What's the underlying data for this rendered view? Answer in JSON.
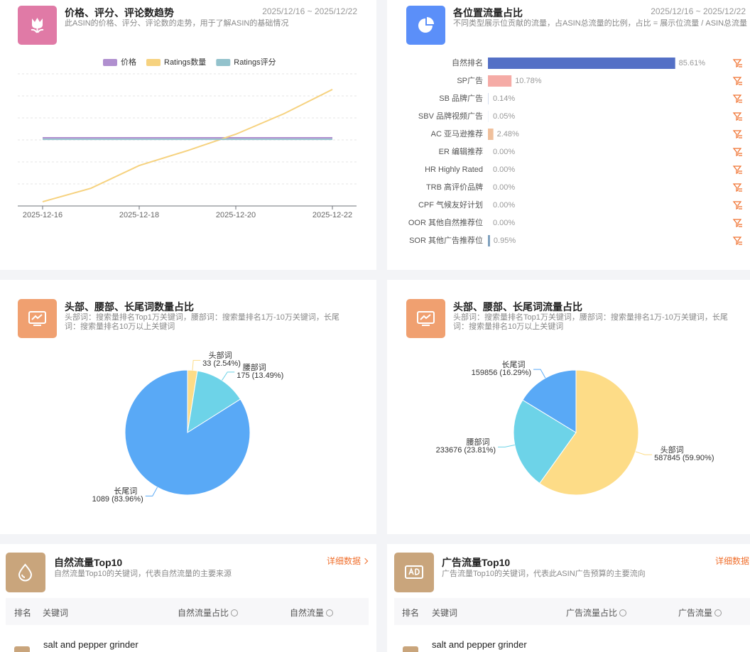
{
  "chart_data": [
    {
      "type": "line",
      "title": "价格、评分、评论数趋势",
      "subtitle": "此ASIN的价格、评分、评论数的走势，用于了解ASIN的基础情况",
      "date_range": "2025/12/16 ~ 2025/12/22",
      "categories": [
        "2025-12-16",
        null,
        "2025-12-18",
        null,
        "2025-12-20",
        null,
        "2025-12-22"
      ],
      "series": [
        {
          "name": "价格",
          "color": "#b08fcf",
          "values": [
            51.6,
            51.6,
            51.6,
            51.6,
            51.6,
            51.6,
            51.6
          ]
        },
        {
          "name": "Ratings数量",
          "color": "#f6d27f",
          "values": [
            3.2,
            13.4,
            30.6,
            41.9,
            54.3,
            69.9,
            88.2
          ]
        },
        {
          "name": "Ratings评分",
          "color": "#93c2cc",
          "values": [
            50.5,
            50.5,
            50.5,
            50.5,
            50.5,
            50.5,
            50.5
          ]
        }
      ],
      "ylim": [
        0,
        100
      ],
      "grid": true
    },
    {
      "type": "hbar",
      "title": "各位置流量占比",
      "subtitle": "不同类型展示位贡献的流量，占ASIN总流量的比例，占比 = 展示位流量 / ASIN总流量",
      "date_range": "2025/12/16 ~ 2025/12/22",
      "categories": [
        "自然排名",
        "SP广告",
        "SB 品牌广告",
        "SBV 品牌视频广告",
        "AC 亚马逊推荐",
        "ER 编辑推荐",
        "HR Highly Rated",
        "TRB 高评价品牌",
        "CPF 气候友好计划",
        "OOR 其他自然推荐位",
        "SOR 其他广告推荐位"
      ],
      "values": [
        85.61,
        10.78,
        0.14,
        0.05,
        2.48,
        0,
        0,
        0,
        0,
        0,
        0.95
      ],
      "value_labels": [
        "85.61%",
        "10.78%",
        "0.14%",
        "0.05%",
        "2.48%",
        "0.00%",
        "0.00%",
        "0.00%",
        "0.00%",
        "0.00%",
        "0.95%"
      ],
      "colors": [
        "#5470c6",
        "#f5aba6",
        "#9fb3d9",
        "#9fb3d9",
        "#f0c09c",
        "#9fb3d9",
        "#9fb3d9",
        "#9fb3d9",
        "#9fb3d9",
        "#9fb3d9",
        "#7d9fbd"
      ],
      "xlim": [
        0,
        100
      ]
    },
    {
      "type": "pie",
      "title": "头部、腰部、长尾词数量占比",
      "subtitle": "头部词：搜索量排名Top1万关键词，腰部词：搜索量排名1万-10万关键词，长尾词：搜索量排名10万以上关键词",
      "categories": [
        "头部词",
        "腰部词",
        "长尾词"
      ],
      "values": [
        33,
        175,
        1089
      ],
      "value_labels": [
        "33 (2.54%)",
        "175 (13.49%)",
        "1089 (83.96%)"
      ],
      "colors": [
        "#fddc87",
        "#6dd3e8",
        "#59a9f6"
      ]
    },
    {
      "type": "pie",
      "title": "头部、腰部、长尾词流量占比",
      "subtitle": "头部词：搜索量排名Top1万关键词，腰部词：搜索量排名1万-10万关键词，长尾词：搜索量排名10万以上关键词",
      "categories": [
        "头部词",
        "腰部词",
        "长尾词"
      ],
      "values": [
        587845,
        233676,
        159856
      ],
      "value_labels": [
        "587845 (59.90%)",
        "233676 (23.81%)",
        "159856 (16.29%)"
      ],
      "colors": [
        "#fddc87",
        "#6dd3e8",
        "#59a9f6"
      ]
    }
  ],
  "tables": [
    {
      "title": "自然流量Top10",
      "subtitle": "自然流量Top10的关键词，代表自然流量的主要来源",
      "link": "详细数据",
      "columns": [
        "排名",
        "关键词",
        "自然流量占比",
        "自然流量"
      ],
      "rows": [
        {
          "keyword": "salt and pepper grinder"
        }
      ]
    },
    {
      "title": "广告流量Top10",
      "subtitle": "广告流量Top10的关键词，代表此ASIN广告预算的主要流向",
      "link": "详细数据",
      "columns": [
        "排名",
        "关键词",
        "广告流量占比",
        "广告流量"
      ],
      "rows": [
        {
          "keyword": "salt and pepper grinder"
        }
      ]
    }
  ]
}
